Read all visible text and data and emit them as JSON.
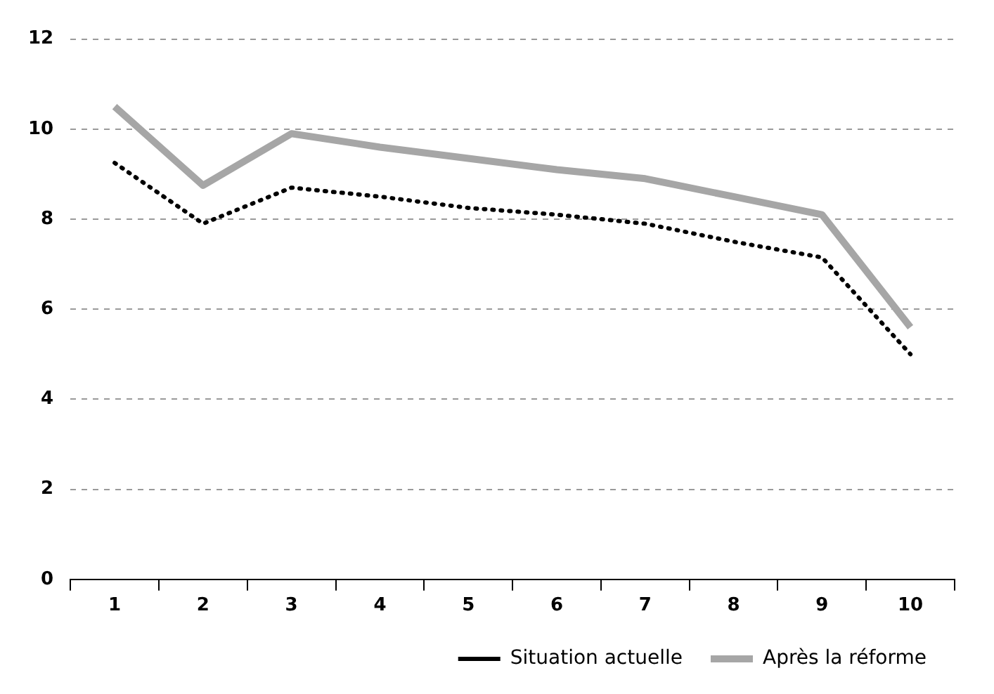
{
  "chart_data": {
    "type": "line",
    "categories": [
      "1",
      "2",
      "3",
      "4",
      "5",
      "6",
      "7",
      "8",
      "9",
      "10"
    ],
    "series": [
      {
        "name": "Situation actuelle",
        "color": "#000000",
        "line_style": "dotted",
        "values": [
          9.25,
          7.9,
          8.7,
          8.5,
          8.25,
          8.1,
          7.9,
          7.5,
          7.15,
          5.0
        ]
      },
      {
        "name": "Après la réforme",
        "color": "#a6a6a6",
        "line_style": "solid",
        "values": [
          10.5,
          8.75,
          9.9,
          9.6,
          9.35,
          9.1,
          8.9,
          8.5,
          8.1,
          5.6
        ]
      }
    ],
    "ylim": [
      0,
      12
    ],
    "yticks": [
      0,
      2,
      4,
      6,
      8,
      10,
      12
    ],
    "grid": "y",
    "legend": "bottom right",
    "marker": "none"
  }
}
